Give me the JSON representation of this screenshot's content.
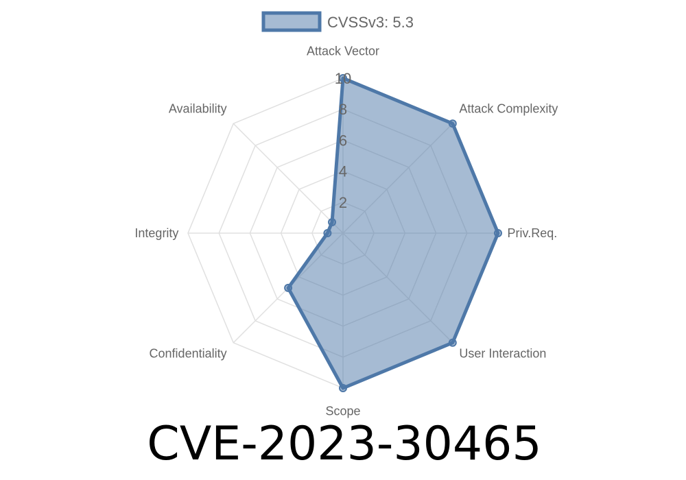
{
  "chart_data": {
    "type": "radar",
    "title": "CVE-2023-30465",
    "axes": [
      "Attack Vector",
      "Attack Complexity",
      "Priv.Req.",
      "User Interaction",
      "Scope",
      "Confidentiality",
      "Integrity",
      "Availability"
    ],
    "series": [
      {
        "name": "CVSSv3: 5.3",
        "values": [
          10,
          10,
          10,
          10,
          10,
          5,
          1,
          1
        ]
      }
    ],
    "rlim": [
      0,
      10
    ],
    "ticks": [
      "2",
      "4",
      "6",
      "8",
      "10"
    ],
    "grid": true,
    "legend": "top",
    "colors": {
      "line": "#4e78a8",
      "fill": "rgba(78,120,168,0.5)",
      "grid": "#e0e0e0",
      "label": "#666666"
    }
  }
}
